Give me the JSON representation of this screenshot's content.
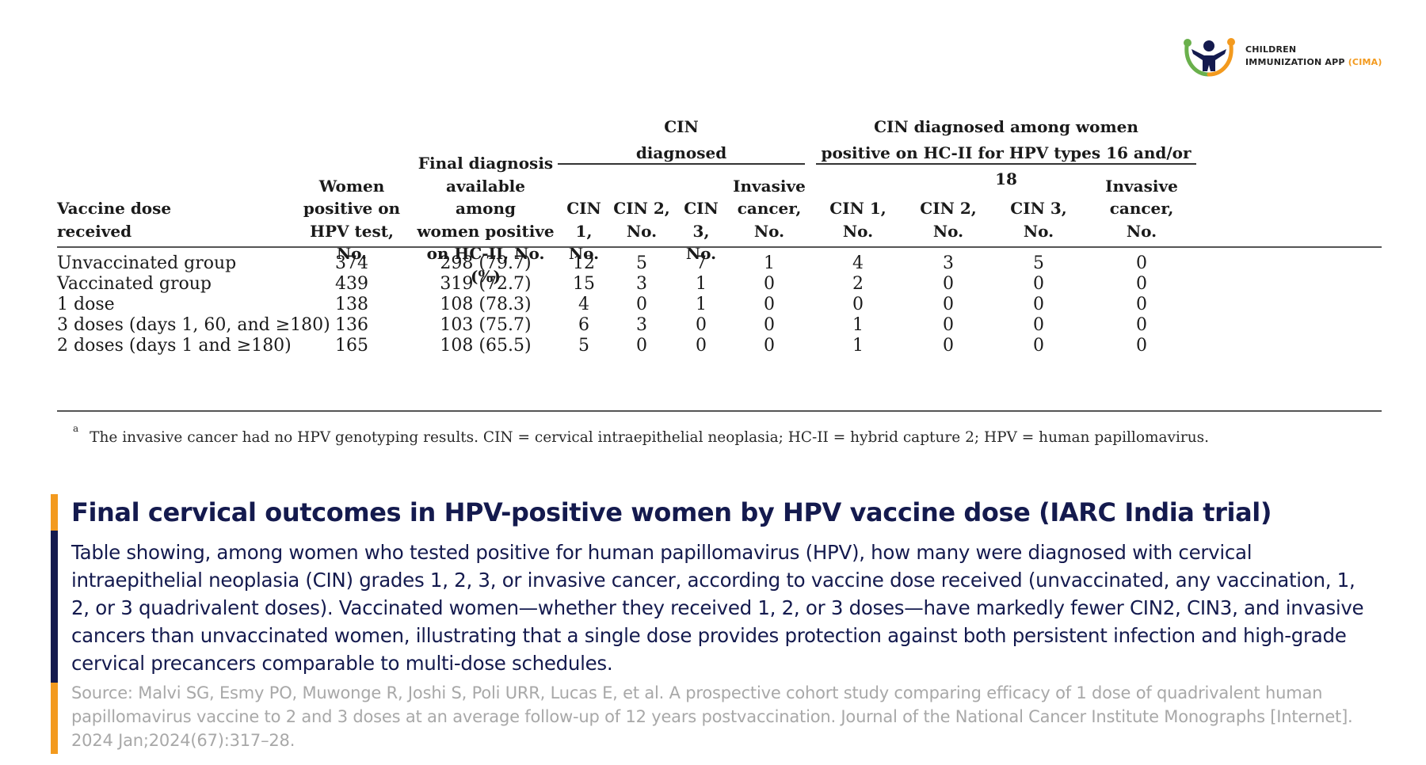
{
  "logo": {
    "line1": "CHILDREN",
    "line2": "IMMUNIZATION APP",
    "accent": "(CIMA)",
    "icon": "cima-logo-icon",
    "accent_color": "#f39a1e"
  },
  "table": {
    "group_headers": {
      "cin_diagnosed": [
        "CIN",
        "diagnosed"
      ],
      "cin_hc2": [
        "CIN diagnosed among women",
        "positive on HC-II for HPV types 16 and/or 18"
      ]
    },
    "columns": [
      [
        "Vaccine dose",
        "received"
      ],
      [
        "Women",
        "positive on",
        "HPV test, No."
      ],
      [
        "Final diagnosis",
        "available among",
        "women positive",
        "on HC-II, No. (%)"
      ],
      [
        "CIN 1,",
        "No."
      ],
      [
        "CIN 2,",
        "No."
      ],
      [
        "CIN 3,",
        "No."
      ],
      [
        "Invasive",
        "cancer,",
        "No."
      ],
      [
        "CIN 1,",
        "No."
      ],
      [
        "CIN 2,",
        "No."
      ],
      [
        "CIN 3,",
        "No."
      ],
      [
        "Invasive",
        "cancer,",
        "No."
      ]
    ],
    "rows": [
      [
        "Unvaccinated group",
        "374",
        "298 (79.7)",
        "12",
        "5",
        "7",
        "1",
        "4",
        "3",
        "5",
        "0"
      ],
      [
        "Vaccinated group",
        "439",
        "319 (72.7)",
        "15",
        "3",
        "1",
        "0",
        "2",
        "0",
        "0",
        "0"
      ],
      [
        "1 dose",
        "138",
        "108 (78.3)",
        "4",
        "0",
        "1",
        "0",
        "0",
        "0",
        "0",
        "0"
      ],
      [
        "3 doses (days 1, 60, and ≥180)",
        "136",
        "103 (75.7)",
        "6",
        "3",
        "0",
        "0",
        "1",
        "0",
        "0",
        "0"
      ],
      [
        "2 doses (days 1 and ≥180)",
        "165",
        "108 (65.5)",
        "5",
        "0",
        "0",
        "0",
        "1",
        "0",
        "0",
        "0"
      ]
    ],
    "footnote_mark": "a",
    "footnote": "The invasive cancer had no HPV genotyping results. CIN = cervical intraepithelial neoplasia; HC-II = hybrid capture 2; HPV = human papillomavirus."
  },
  "caption": {
    "title": "Final cervical outcomes in HPV-positive women by HPV vaccine dose (IARC India trial)",
    "body": "Table showing, among women who tested positive for human papillomavirus (HPV), how many were diagnosed with cervical intraepithelial neoplasia (CIN) grades 1, 2, 3, or invasive cancer, according to vaccine dose received (unvaccinated, any vaccination, 1, 2, or 3 quadrivalent doses). Vaccinated women—whether they received 1, 2, or 3 doses—have markedly fewer CIN2, CIN3, and invasive cancers than unvaccinated women, illustrating that a single dose provides protection against both persistent infection and high-grade cervical precancers comparable to multi-dose schedules.",
    "source": "Source: Malvi SG, Esmy PO, Muwonge R, Joshi S, Poli URR, Lucas E, et al. A prospective cohort study comparing efficacy of 1 dose of quadrivalent human papillomavirus vaccine to 2 and 3 doses at an average follow-up of 12 years postvaccination. Journal of the National Cancer Institute Monographs [Internet]. 2024 Jan;2024(67):317–28.",
    "title_color": "#141a4e",
    "bar_colors": [
      "#f39a1e",
      "#141a4e"
    ]
  }
}
